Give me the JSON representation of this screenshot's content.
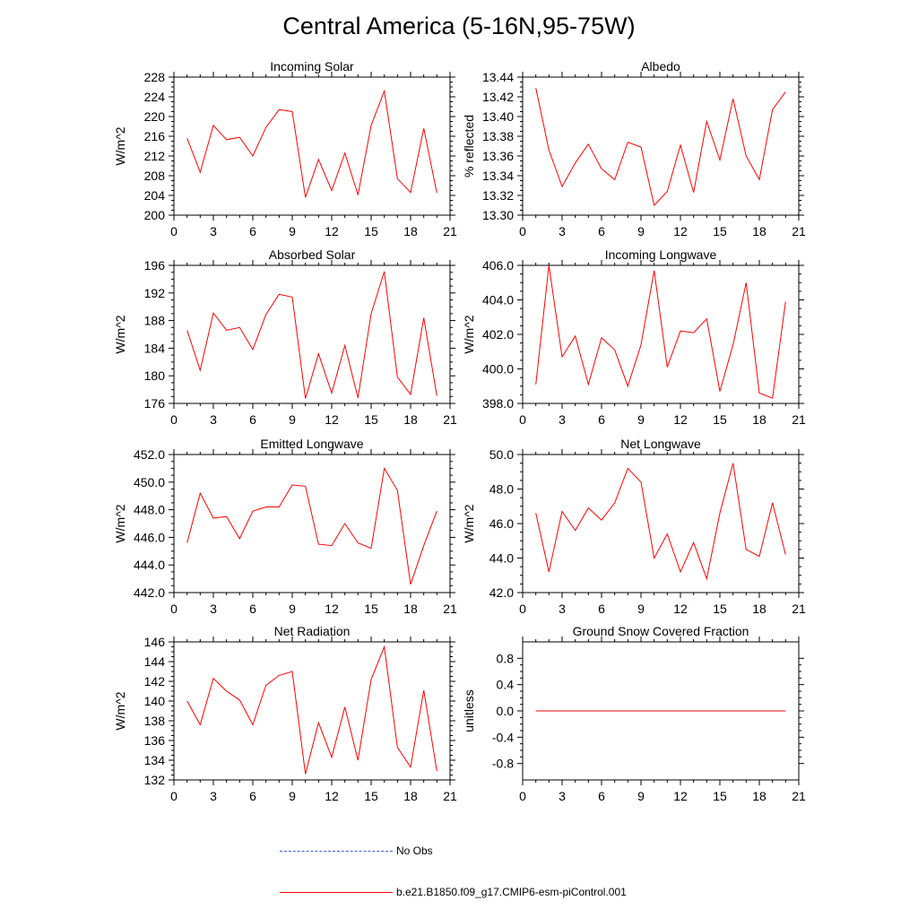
{
  "title": "Central America (5-16N,95-75W)",
  "legend": {
    "obs_label": "No Obs",
    "obs_color": "#3b5bdb",
    "model_label": "b.e21.B1850.f09_g17.CMIP6-esm-piControl.001",
    "model_color": "#ff0000"
  },
  "chart_data": [
    {
      "type": "line",
      "title": "Incoming Solar",
      "xlabel": "",
      "ylabel": "W/m^2",
      "xlim": [
        0,
        21
      ],
      "ylim": [
        200,
        228
      ],
      "xticks": [
        0,
        3,
        6,
        9,
        12,
        15,
        18,
        21
      ],
      "yticks": [
        "200",
        "204",
        "208",
        "212",
        "216",
        "220",
        "224",
        "228"
      ],
      "x": [
        1,
        2,
        3,
        4,
        5,
        6,
        7,
        8,
        9,
        10,
        11,
        12,
        13,
        14,
        15,
        16,
        17,
        18,
        19,
        20
      ],
      "series": [
        {
          "name": "b.e21.B1850.f09_g17.CMIP6-esm-piControl.001",
          "values": [
            215.6,
            208.7,
            218.2,
            215.3,
            215.8,
            212.0,
            217.8,
            221.4,
            221.0,
            203.6,
            211.3,
            205.0,
            212.6,
            204.1,
            218.2,
            225.2,
            207.4,
            204.6,
            217.6,
            204.5
          ]
        }
      ]
    },
    {
      "type": "line",
      "title": "Albedo",
      "xlabel": "",
      "ylabel": "% reflected",
      "xlim": [
        0,
        21
      ],
      "ylim": [
        13.3,
        13.44
      ],
      "xticks": [
        0,
        3,
        6,
        9,
        12,
        15,
        18,
        21
      ],
      "yticks": [
        "13.30",
        "13.32",
        "13.34",
        "13.36",
        "13.38",
        "13.40",
        "13.42",
        "13.44"
      ],
      "x": [
        1,
        2,
        3,
        4,
        5,
        6,
        7,
        8,
        9,
        10,
        11,
        12,
        13,
        14,
        15,
        16,
        17,
        18,
        19,
        20
      ],
      "series": [
        {
          "name": "b.e21.B1850.f09_g17.CMIP6-esm-piControl.001",
          "values": [
            13.429,
            13.366,
            13.329,
            13.353,
            13.372,
            13.347,
            13.336,
            13.374,
            13.369,
            13.31,
            13.324,
            13.371,
            13.323,
            13.395,
            13.356,
            13.418,
            13.36,
            13.336,
            13.407,
            13.425
          ]
        }
      ]
    },
    {
      "type": "line",
      "title": "Absorbed Solar",
      "xlabel": "",
      "ylabel": "W/m^2",
      "xlim": [
        0,
        21
      ],
      "ylim": [
        176,
        196
      ],
      "xticks": [
        0,
        3,
        6,
        9,
        12,
        15,
        18,
        21
      ],
      "yticks": [
        "176",
        "180",
        "184",
        "188",
        "192",
        "196"
      ],
      "x": [
        1,
        2,
        3,
        4,
        5,
        6,
        7,
        8,
        9,
        10,
        11,
        12,
        13,
        14,
        15,
        16,
        17,
        18,
        19,
        20
      ],
      "series": [
        {
          "name": "b.e21.B1850.f09_g17.CMIP6-esm-piControl.001",
          "values": [
            186.6,
            180.8,
            189.1,
            186.6,
            187.0,
            183.8,
            188.9,
            191.8,
            191.4,
            176.7,
            183.2,
            177.5,
            184.4,
            176.8,
            189.0,
            195.1,
            179.8,
            177.3,
            188.4,
            177.1
          ]
        }
      ]
    },
    {
      "type": "line",
      "title": "Incoming Longwave",
      "xlabel": "",
      "ylabel": "W/m^2",
      "xlim": [
        0,
        21
      ],
      "ylim": [
        398.0,
        406.0
      ],
      "xticks": [
        0,
        3,
        6,
        9,
        12,
        15,
        18,
        21
      ],
      "yticks": [
        "398.0",
        "400.0",
        "402.0",
        "404.0",
        "406.0"
      ],
      "x": [
        1,
        2,
        3,
        4,
        5,
        6,
        7,
        8,
        9,
        10,
        11,
        12,
        13,
        14,
        15,
        16,
        17,
        18,
        19,
        20
      ],
      "series": [
        {
          "name": "b.e21.B1850.f09_g17.CMIP6-esm-piControl.001",
          "values": [
            399.1,
            406.0,
            400.7,
            401.9,
            399.1,
            401.8,
            401.1,
            399.0,
            401.4,
            405.7,
            400.1,
            402.2,
            402.1,
            402.9,
            398.7,
            401.4,
            405.0,
            398.6,
            398.3,
            403.9
          ]
        }
      ]
    },
    {
      "type": "line",
      "title": "Emitted Longwave",
      "xlabel": "",
      "ylabel": "W/m^2",
      "xlim": [
        0,
        21
      ],
      "ylim": [
        442.0,
        452.0
      ],
      "xticks": [
        0,
        3,
        6,
        9,
        12,
        15,
        18,
        21
      ],
      "yticks": [
        "442.0",
        "444.0",
        "446.0",
        "448.0",
        "450.0",
        "452.0"
      ],
      "x": [
        1,
        2,
        3,
        4,
        5,
        6,
        7,
        8,
        9,
        10,
        11,
        12,
        13,
        14,
        15,
        16,
        17,
        18,
        19,
        20
      ],
      "series": [
        {
          "name": "b.e21.B1850.f09_g17.CMIP6-esm-piControl.001",
          "values": [
            445.6,
            449.2,
            447.4,
            447.5,
            445.9,
            447.9,
            448.2,
            448.2,
            449.8,
            449.7,
            445.5,
            445.4,
            447.0,
            445.6,
            445.2,
            451.0,
            449.4,
            442.6,
            445.4,
            447.9
          ]
        }
      ]
    },
    {
      "type": "line",
      "title": "Net Longwave",
      "xlabel": "",
      "ylabel": "W/m^2",
      "xlim": [
        0,
        21
      ],
      "ylim": [
        42.0,
        50.0
      ],
      "xticks": [
        0,
        3,
        6,
        9,
        12,
        15,
        18,
        21
      ],
      "yticks": [
        "42.0",
        "44.0",
        "46.0",
        "48.0",
        "50.0"
      ],
      "x": [
        1,
        2,
        3,
        4,
        5,
        6,
        7,
        8,
        9,
        10,
        11,
        12,
        13,
        14,
        15,
        16,
        17,
        18,
        19,
        20
      ],
      "series": [
        {
          "name": "b.e21.B1850.f09_g17.CMIP6-esm-piControl.001",
          "values": [
            46.6,
            43.2,
            46.7,
            45.6,
            46.9,
            46.2,
            47.2,
            49.2,
            48.4,
            44.0,
            45.4,
            43.2,
            44.9,
            42.8,
            46.6,
            49.5,
            44.5,
            44.1,
            47.2,
            44.2
          ]
        }
      ]
    },
    {
      "type": "line",
      "title": "Net Radiation",
      "xlabel": "",
      "ylabel": "W/m^2",
      "xlim": [
        0,
        21
      ],
      "ylim": [
        132,
        146
      ],
      "xticks": [
        0,
        3,
        6,
        9,
        12,
        15,
        18,
        21
      ],
      "yticks": [
        "132",
        "134",
        "136",
        "138",
        "140",
        "142",
        "144",
        "146"
      ],
      "x": [
        1,
        2,
        3,
        4,
        5,
        6,
        7,
        8,
        9,
        10,
        11,
        12,
        13,
        14,
        15,
        16,
        17,
        18,
        19,
        20
      ],
      "series": [
        {
          "name": "b.e21.B1850.f09_g17.CMIP6-esm-piControl.001",
          "values": [
            140.0,
            137.6,
            142.3,
            141.0,
            140.1,
            137.6,
            141.6,
            142.6,
            143.0,
            132.6,
            137.8,
            134.3,
            139.4,
            134.0,
            142.2,
            145.5,
            135.3,
            133.3,
            141.1,
            132.9
          ]
        }
      ]
    },
    {
      "type": "line",
      "title": "Ground Snow Covered Fraction",
      "xlabel": "",
      "ylabel": "unitless",
      "xlim": [
        0,
        21
      ],
      "ylim": [
        -1.05,
        1.05
      ],
      "xticks": [
        0,
        3,
        6,
        9,
        12,
        15,
        18,
        21
      ],
      "yticks": [
        "-0.8",
        "-0.4",
        "0.0",
        "0.4",
        "0.8"
      ],
      "x": [
        1,
        2,
        3,
        4,
        5,
        6,
        7,
        8,
        9,
        10,
        11,
        12,
        13,
        14,
        15,
        16,
        17,
        18,
        19,
        20
      ],
      "series": [
        {
          "name": "b.e21.B1850.f09_g17.CMIP6-esm-piControl.001",
          "values": [
            0,
            0,
            0,
            0,
            0,
            0,
            0,
            0,
            0,
            0,
            0,
            0,
            0,
            0,
            0,
            0,
            0,
            0,
            0,
            0
          ]
        }
      ]
    }
  ]
}
